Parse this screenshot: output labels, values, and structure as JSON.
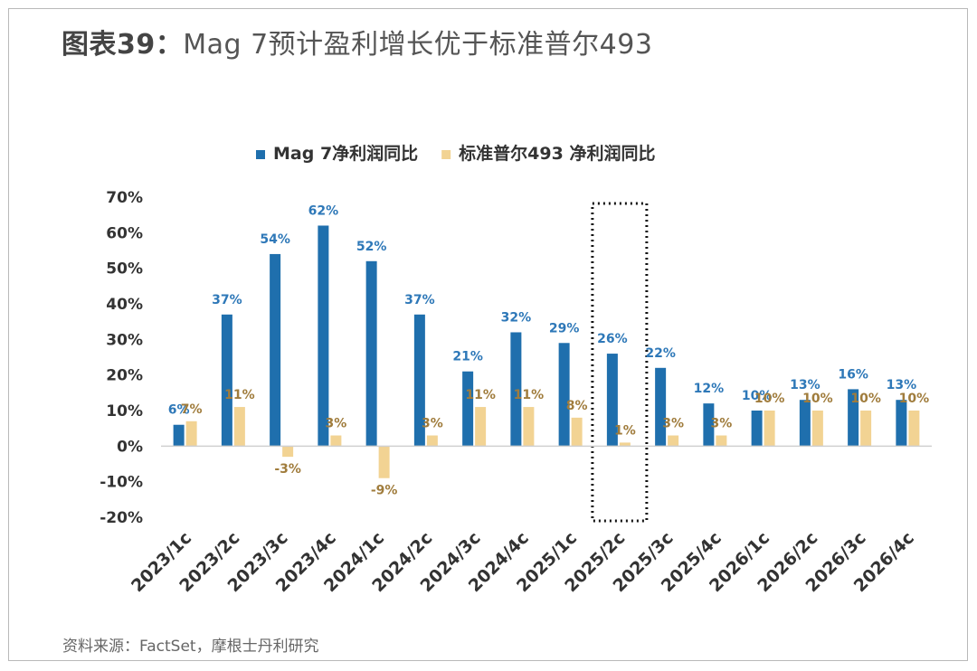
{
  "title": {
    "lead": "图表39：",
    "text": "Mag 7预计盈利增长优于标准普尔493"
  },
  "source": "资料来源：FactSet，摩根士丹利研究",
  "chart_data": {
    "type": "bar",
    "categories": [
      "2023/1c",
      "2023/2c",
      "2023/3c",
      "2023/4c",
      "2024/1c",
      "2024/2c",
      "2024/3c",
      "2024/4c",
      "2025/1c",
      "2025/2c",
      "2025/3c",
      "2025/4c",
      "2026/1c",
      "2026/2c",
      "2026/3c",
      "2026/4c"
    ],
    "series": [
      {
        "name": "Mag 7净利润同比",
        "color": "#1f6fad",
        "label_color": "#2e78b8",
        "values": [
          6,
          37,
          54,
          62,
          52,
          37,
          21,
          32,
          29,
          26,
          22,
          12,
          10,
          13,
          16,
          13
        ]
      },
      {
        "name": "标准普尔493 净利润同比",
        "color": "#f2d393",
        "label_color": "#a07c3c",
        "values": [
          7,
          11,
          -3,
          3,
          -9,
          3,
          11,
          11,
          8,
          1,
          3,
          3,
          10,
          10,
          10,
          10
        ]
      }
    ],
    "ylim": [
      -20,
      70
    ],
    "yticks": [
      -20,
      -10,
      0,
      10,
      20,
      30,
      40,
      50,
      60,
      70
    ],
    "ytick_format": "%",
    "legend_position": "top",
    "grid": false,
    "highlight_category": "2025/2c",
    "highlight_style": "dotted-box"
  }
}
